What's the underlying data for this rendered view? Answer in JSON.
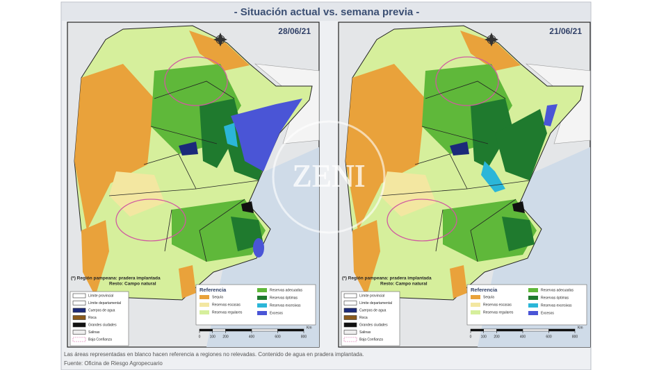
{
  "title": "- Situación actual vs. semana previa -",
  "maps": [
    {
      "date": "28/06/21",
      "excess_east": true
    },
    {
      "date": "21/06/21",
      "excess_east": false
    }
  ],
  "note": {
    "line1": "(*) Región pampeana: pradera implantada",
    "line2": "Resto: Campo natural"
  },
  "reference": {
    "title": "Referencia",
    "items": [
      {
        "label": "Sequía",
        "color": "#e9a23b"
      },
      {
        "label": "Reservas escasas",
        "color": "#f3e7a1"
      },
      {
        "label": "Reservas regulares",
        "color": "#d6ef9c"
      },
      {
        "label": "Reservas adecuadas",
        "color": "#5fb83a"
      },
      {
        "label": "Reservas óptimas",
        "color": "#1f7a2e"
      },
      {
        "label": "Reservas excesivas",
        "color": "#2bb6d8"
      },
      {
        "label": "Excesos",
        "color": "#4a55d6"
      }
    ]
  },
  "boundaries": [
    "Límite provincial",
    "Límite departamental",
    "Cuerpos de agua",
    "Roca",
    "Grandes ciudades",
    "Salinas",
    "Baja Confianza"
  ],
  "scale": {
    "ticks": [
      0,
      100,
      200,
      400,
      600,
      800
    ],
    "unit": "Km"
  },
  "watermark": "ZENI",
  "footer": [
    "Las áreas representadas en blanco hacen referencia a regiones no relevadas. Contenido de agua en pradera implantada.",
    "Fuente: Oficina de Riesgo Agropecuario"
  ]
}
